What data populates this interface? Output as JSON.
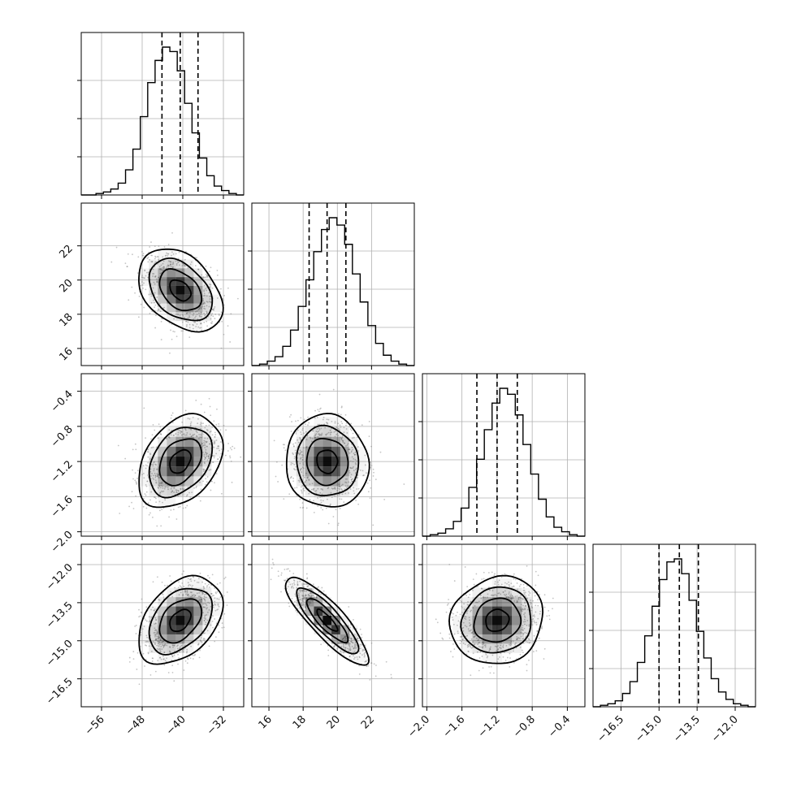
{
  "chart_data": {
    "type": "corner",
    "grid": true,
    "colors": {
      "line": "#000000",
      "grid": "#b0b0b0",
      "density": "#000000",
      "scatter": "#7f7f7f"
    },
    "parameters": [
      {
        "key": "p1",
        "range": [
          -60,
          -28
        ],
        "ticks": [
          -56,
          -48,
          -40,
          -32
        ],
        "tick_labels": [
          "−56",
          "−48",
          "−40",
          "−32"
        ],
        "mean": -40.5,
        "sigma": 3.6,
        "quantiles": [
          -44.1,
          -40.5,
          -37.0
        ],
        "hist": [
          0.0,
          0.0,
          0.01,
          0.02,
          0.04,
          0.08,
          0.17,
          0.31,
          0.53,
          0.76,
          0.91,
          1.0,
          0.97,
          0.84,
          0.62,
          0.42,
          0.25,
          0.13,
          0.06,
          0.03,
          0.01,
          0.0
        ]
      },
      {
        "key": "p2",
        "range": [
          15,
          24.5
        ],
        "ticks": [
          16,
          18,
          20,
          22
        ],
        "tick_labels": [
          "16",
          "18",
          "20",
          "22"
        ],
        "mean": 19.4,
        "sigma": 1.05,
        "quantiles": [
          18.35,
          19.4,
          20.5
        ],
        "hist": [
          0.0,
          0.01,
          0.03,
          0.06,
          0.13,
          0.24,
          0.4,
          0.58,
          0.77,
          0.92,
          1.0,
          0.95,
          0.82,
          0.62,
          0.43,
          0.27,
          0.15,
          0.07,
          0.03,
          0.01,
          0.0
        ]
      },
      {
        "key": "p3",
        "range": [
          -2.05,
          -0.2
        ],
        "ticks": [
          -2.0,
          -1.6,
          -1.2,
          -0.8,
          -0.4
        ],
        "tick_labels": [
          "−2.0",
          "−1.6",
          "−1.2",
          "−0.8",
          "−0.4"
        ],
        "mean": -1.2,
        "sigma": 0.23,
        "quantiles": [
          -1.43,
          -1.2,
          -0.97
        ],
        "hist": [
          0.0,
          0.01,
          0.02,
          0.05,
          0.1,
          0.19,
          0.33,
          0.52,
          0.72,
          0.9,
          1.0,
          0.96,
          0.82,
          0.62,
          0.42,
          0.25,
          0.13,
          0.06,
          0.03,
          0.01,
          0.0
        ]
      },
      {
        "key": "p4",
        "range": [
          -17.6,
          -11.2
        ],
        "ticks": [
          -16.5,
          -15.0,
          -13.5,
          -12.0
        ],
        "tick_labels": [
          "−16.5",
          "−15.0",
          "−13.5",
          "−12.0"
        ],
        "mean": -14.2,
        "sigma": 0.75,
        "quantiles": [
          -15.0,
          -14.2,
          -13.45
        ],
        "hist": [
          0.0,
          0.01,
          0.02,
          0.04,
          0.09,
          0.17,
          0.3,
          0.48,
          0.68,
          0.86,
          0.98,
          1.0,
          0.9,
          0.72,
          0.51,
          0.33,
          0.19,
          0.1,
          0.05,
          0.02,
          0.01,
          0.0
        ]
      }
    ],
    "pairs": [
      {
        "x": "p1",
        "y": "p2",
        "rho": -0.38
      },
      {
        "x": "p1",
        "y": "p3",
        "rho": 0.35
      },
      {
        "x": "p2",
        "y": "p3",
        "rho": -0.05
      },
      {
        "x": "p1",
        "y": "p4",
        "rho": 0.4
      },
      {
        "x": "p2",
        "y": "p4",
        "rho": -0.85
      },
      {
        "x": "p3",
        "y": "p4",
        "rho": 0.1
      }
    ],
    "contour_levels_sigma": [
      0.5,
      1.0,
      1.5,
      2.0
    ]
  }
}
